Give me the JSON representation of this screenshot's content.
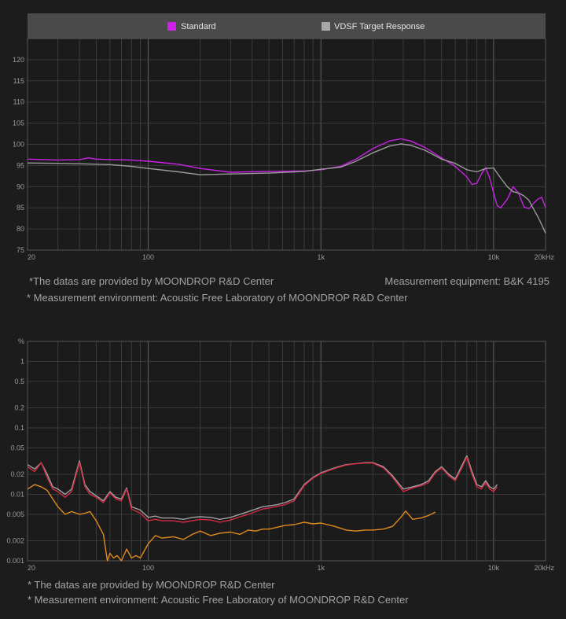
{
  "chart_data": [
    {
      "type": "line",
      "title": "",
      "xlabel": "",
      "ylabel": "",
      "x_scale": "log",
      "xlim": [
        20,
        20000
      ],
      "ylim": [
        75,
        125
      ],
      "grid": true,
      "legend": "top",
      "x_tick_labels": [
        {
          "value": 20,
          "label": "20"
        },
        {
          "value": 100,
          "label": "100"
        },
        {
          "value": 1000,
          "label": "1k"
        },
        {
          "value": 10000,
          "label": "10k"
        },
        {
          "value": 20000,
          "label": "20kHz"
        }
      ],
      "y_tick_labels": [
        "75",
        "80",
        "85",
        "90",
        "95",
        "100",
        "105",
        "110",
        "115",
        "120"
      ],
      "y_ticks": [
        75,
        80,
        85,
        90,
        95,
        100,
        105,
        110,
        115,
        120
      ],
      "series": [
        {
          "name": "Standard",
          "color": "#cc22e8",
          "x": [
            20,
            30,
            40,
            45,
            50,
            60,
            80,
            100,
            150,
            200,
            300,
            500,
            800,
            1000,
            1300,
            1600,
            2000,
            2500,
            2900,
            3300,
            4000,
            5000,
            6000,
            7000,
            7500,
            8000,
            8500,
            9000,
            9500,
            10000,
            10500,
            11000,
            12000,
            13000,
            14000,
            15000,
            16000,
            17000,
            18000,
            19000,
            20000
          ],
          "y": [
            96.5,
            96.3,
            96.4,
            96.8,
            96.5,
            96.4,
            96.3,
            96.0,
            95.3,
            94.3,
            93.4,
            93.6,
            93.7,
            94.0,
            94.8,
            96.5,
            99.0,
            100.8,
            101.3,
            100.8,
            99.3,
            96.8,
            94.8,
            92.3,
            90.5,
            90.8,
            93.0,
            94.5,
            92.0,
            88.5,
            85.5,
            85.0,
            87.0,
            90.0,
            88.3,
            85.2,
            84.8,
            86.0,
            87.0,
            87.5,
            85.0
          ]
        },
        {
          "name": "VDSF Target Response",
          "color": "#9a9a9a",
          "x": [
            20,
            30,
            40,
            50,
            60,
            80,
            100,
            150,
            200,
            300,
            500,
            800,
            1000,
            1300,
            1600,
            2000,
            2500,
            2900,
            3300,
            4000,
            5000,
            6000,
            7000,
            8000,
            9000,
            10000,
            11000,
            12000,
            13000,
            14000,
            15000,
            16000,
            17000,
            18000,
            19000,
            20000
          ],
          "y": [
            95.6,
            95.5,
            95.4,
            95.3,
            95.2,
            94.8,
            94.3,
            93.5,
            92.8,
            93.0,
            93.2,
            93.6,
            94.1,
            94.6,
            96.0,
            98.0,
            99.6,
            100.1,
            99.8,
            98.6,
            96.5,
            95.5,
            94.0,
            93.5,
            94.3,
            94.4,
            92.0,
            90.0,
            88.8,
            88.5,
            87.8,
            86.8,
            84.8,
            83.0,
            81.0,
            79.0
          ]
        }
      ]
    },
    {
      "type": "line",
      "title": "",
      "xlabel": "",
      "ylabel": "%",
      "x_scale": "log",
      "y_scale": "log",
      "xlim": [
        20,
        20000
      ],
      "ylim": [
        0.001,
        2
      ],
      "grid": true,
      "legend": "none",
      "x_tick_labels": [
        {
          "value": 20,
          "label": "20"
        },
        {
          "value": 100,
          "label": "100"
        },
        {
          "value": 1000,
          "label": "1k"
        },
        {
          "value": 10000,
          "label": "10k"
        },
        {
          "value": 20000,
          "label": "20kHz"
        }
      ],
      "y_ticks": [
        0.001,
        0.002,
        0.005,
        0.01,
        0.02,
        0.05,
        0.1,
        0.2,
        0.5,
        1,
        2
      ],
      "y_tick_labels": [
        "0.001",
        "0.002",
        "0.005",
        "0.01",
        "0.02",
        "0.05",
        "0.1",
        "0.2",
        "0.5",
        "1",
        "%"
      ],
      "series": [
        {
          "color": "#a0a0a0",
          "x": [
            20,
            22,
            24,
            26,
            28,
            30,
            33,
            36,
            40,
            43,
            46,
            50,
            55,
            60,
            65,
            70,
            75,
            80,
            90,
            100,
            110,
            120,
            140,
            160,
            180,
            200,
            230,
            260,
            300,
            340,
            380,
            420,
            460,
            500,
            560,
            620,
            700,
            800,
            900,
            1000,
            1200,
            1400,
            1600,
            1800,
            2000,
            2300,
            2600,
            3000,
            3400,
            3800,
            4200,
            4600,
            5000,
            5500,
            6000,
            6500,
            7000,
            7500,
            8000,
            8500,
            9000,
            9500,
            10000,
            10500
          ],
          "y": [
            0.028,
            0.024,
            0.03,
            0.02,
            0.013,
            0.012,
            0.01,
            0.012,
            0.032,
            0.014,
            0.011,
            0.0095,
            0.008,
            0.011,
            0.009,
            0.0085,
            0.0125,
            0.0065,
            0.0058,
            0.0045,
            0.0047,
            0.0044,
            0.0044,
            0.0042,
            0.0045,
            0.0046,
            0.0045,
            0.0042,
            0.0045,
            0.005,
            0.0055,
            0.006,
            0.0065,
            0.0067,
            0.007,
            0.0075,
            0.0085,
            0.014,
            0.018,
            0.021,
            0.025,
            0.028,
            0.029,
            0.03,
            0.03,
            0.026,
            0.019,
            0.012,
            0.013,
            0.014,
            0.016,
            0.022,
            0.026,
            0.02,
            0.017,
            0.026,
            0.038,
            0.022,
            0.014,
            0.013,
            0.016,
            0.013,
            0.012,
            0.014
          ]
        },
        {
          "color": "#d42b44",
          "x": [
            20,
            22,
            24,
            26,
            28,
            30,
            33,
            36,
            40,
            43,
            46,
            50,
            55,
            60,
            65,
            70,
            75,
            80,
            90,
            100,
            110,
            120,
            140,
            160,
            180,
            200,
            230,
            260,
            300,
            340,
            380,
            420,
            460,
            500,
            560,
            620,
            700,
            800,
            900,
            1000,
            1200,
            1400,
            1600,
            1800,
            2000,
            2300,
            2600,
            3000,
            3400,
            3800,
            4200,
            4600,
            5000,
            5500,
            6000,
            6500,
            7000,
            7500,
            8000,
            8500,
            9000,
            9500,
            10000,
            10500
          ],
          "y": [
            0.026,
            0.022,
            0.03,
            0.018,
            0.012,
            0.011,
            0.009,
            0.011,
            0.03,
            0.013,
            0.01,
            0.009,
            0.0075,
            0.0105,
            0.0085,
            0.008,
            0.012,
            0.006,
            0.0052,
            0.004,
            0.0042,
            0.004,
            0.004,
            0.0038,
            0.004,
            0.0042,
            0.0041,
            0.0038,
            0.0041,
            0.0046,
            0.005,
            0.0055,
            0.006,
            0.0062,
            0.0066,
            0.007,
            0.008,
            0.0135,
            0.0175,
            0.0205,
            0.0245,
            0.0275,
            0.029,
            0.0295,
            0.0295,
            0.025,
            0.018,
            0.011,
            0.0125,
            0.0135,
            0.015,
            0.021,
            0.025,
            0.019,
            0.016,
            0.024,
            0.036,
            0.02,
            0.013,
            0.012,
            0.015,
            0.012,
            0.011,
            0.013
          ]
        },
        {
          "color": "#e08a1e",
          "x": [
            20,
            22,
            24,
            26,
            28,
            30,
            33,
            36,
            40,
            43,
            46,
            50,
            55,
            58,
            60,
            63,
            66,
            70,
            75,
            80,
            85,
            90,
            100,
            110,
            120,
            140,
            160,
            180,
            200,
            230,
            260,
            300,
            340,
            380,
            420,
            460,
            500,
            560,
            620,
            700,
            800,
            900,
            1000,
            1200,
            1400,
            1600,
            1800,
            2000,
            2300,
            2600,
            2900,
            3100,
            3400,
            3800,
            4200,
            4600
          ],
          "y": [
            0.012,
            0.014,
            0.013,
            0.0115,
            0.0085,
            0.0065,
            0.005,
            0.0055,
            0.005,
            0.0052,
            0.0055,
            0.004,
            0.0025,
            0.001,
            0.0013,
            0.0011,
            0.0012,
            0.001,
            0.0015,
            0.0011,
            0.0012,
            0.0011,
            0.0018,
            0.0024,
            0.0022,
            0.0023,
            0.0021,
            0.0025,
            0.0028,
            0.0024,
            0.0026,
            0.0027,
            0.0025,
            0.0029,
            0.0028,
            0.003,
            0.003,
            0.0032,
            0.0034,
            0.0035,
            0.0038,
            0.0036,
            0.0037,
            0.0033,
            0.0029,
            0.0028,
            0.0029,
            0.0029,
            0.003,
            0.0033,
            0.0045,
            0.0056,
            0.0042,
            0.0044,
            0.0048,
            0.0054
          ]
        }
      ]
    }
  ],
  "notes": {
    "fr_source": "*The datas are provided by MOONDROP R&D Center",
    "fr_equipment": "Measurement equipment: B&K 4195",
    "fr_environment": "* Measurement environment: Acoustic Free Laboratory of MOONDROP R&D Center",
    "thd_source": "* The datas are provided by MOONDROP R&D Center",
    "thd_environment": "* Measurement environment: Acoustic Free Laboratory of MOONDROP R&D Center"
  }
}
